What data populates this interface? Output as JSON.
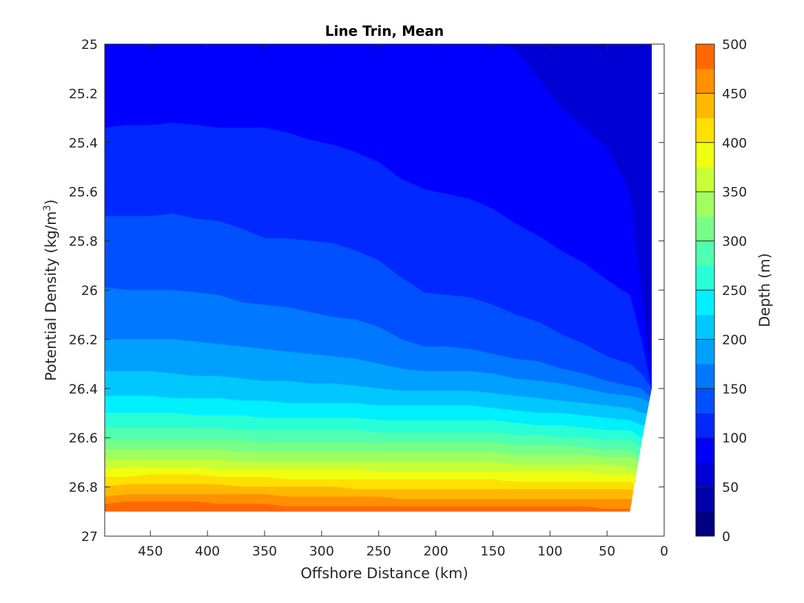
{
  "chart_data": {
    "type": "filled-contour",
    "title": "Line Trin, Mean",
    "xlabel": "Offshore Distance (km)",
    "ylabel": "Potential Density (kg/m3)",
    "ylabel_main": "Potential Density (kg/m",
    "ylabel_sup": "3",
    "ylabel_close": ")",
    "x_direction": "reversed",
    "y_direction": "reversed",
    "xlim": [
      0,
      490
    ],
    "ylim": [
      25,
      27
    ],
    "x_ticks": [
      450,
      400,
      350,
      300,
      250,
      200,
      150,
      100,
      50,
      0
    ],
    "y_ticks": [
      25,
      25.2,
      25.4,
      25.6,
      25.8,
      26,
      26.2,
      26.4,
      26.6,
      26.8,
      27
    ],
    "y_tick_labels": [
      "25",
      "25.2",
      "25.4",
      "25.6",
      "25.8",
      "26",
      "26.2",
      "26.4",
      "26.6",
      "26.8",
      "27"
    ],
    "colormap": "jet",
    "grid": false,
    "colorbar": {
      "label": "Depth (m)",
      "limits": [
        0,
        500
      ],
      "ticks": [
        0,
        50,
        100,
        150,
        200,
        250,
        300,
        350,
        400,
        450,
        500
      ],
      "levels": [
        0,
        25,
        50,
        75,
        100,
        125,
        150,
        175,
        200,
        225,
        250,
        275,
        300,
        325,
        350,
        375,
        400,
        425,
        450,
        475,
        500
      ],
      "colors": [
        "#000080",
        "#0000AA",
        "#0000D4",
        "#0000FF",
        "#0028FF",
        "#0050FF",
        "#0078FF",
        "#00A0FF",
        "#00C8FF",
        "#00F0FF",
        "#28FFD7",
        "#50FFAF",
        "#78FF87",
        "#A0FF5F",
        "#C8FF37",
        "#F0FF0F",
        "#FFE000",
        "#FFB800",
        "#FF9000",
        "#FF6800",
        "#FF4000",
        "#FF1800",
        "#EE0000",
        "#C40000",
        "#A30000"
      ]
    },
    "x": [
      490,
      470,
      450,
      430,
      410,
      390,
      370,
      350,
      330,
      310,
      290,
      270,
      250,
      230,
      210,
      190,
      170,
      150,
      130,
      110,
      90,
      70,
      50,
      30,
      20,
      11
    ],
    "y_top_of_data": 25,
    "density_bottom_at_x": [
      26.9,
      26.9,
      26.9,
      26.9,
      26.9,
      26.9,
      26.9,
      26.9,
      26.9,
      26.9,
      26.9,
      26.9,
      26.9,
      26.9,
      26.9,
      26.9,
      26.9,
      26.9,
      26.9,
      26.9,
      26.9,
      26.9,
      26.9,
      26.9,
      26.62,
      26.4
    ],
    "isolines": [
      {
        "depth": 25,
        "density": [
          24.99,
          24.99,
          24.99,
          24.99,
          24.99,
          24.99,
          24.99,
          24.99,
          24.99,
          24.99,
          24.99,
          24.99,
          24.99,
          24.99,
          24.99,
          24.99,
          24.99,
          24.99,
          24.99,
          24.99,
          24.99,
          24.99,
          24.99,
          24.99,
          24.99,
          24.99
        ]
      },
      {
        "depth": 50,
        "density": [
          24.99,
          24.99,
          24.99,
          24.99,
          24.99,
          24.99,
          24.99,
          24.99,
          24.99,
          24.99,
          24.99,
          24.99,
          24.99,
          24.99,
          24.99,
          24.99,
          24.99,
          24.99,
          24.99,
          24.99,
          24.99,
          24.99,
          24.99,
          24.99,
          24.99,
          24.99
        ]
      },
      {
        "depth": 75,
        "density": [
          24.99,
          24.99,
          24.99,
          24.99,
          24.99,
          24.99,
          24.99,
          24.99,
          24.99,
          24.99,
          24.99,
          24.99,
          24.99,
          24.99,
          24.99,
          24.99,
          24.99,
          24.99,
          25.02,
          25.14,
          25.26,
          25.34,
          25.42,
          25.6,
          26.0,
          26.36
        ]
      },
      {
        "depth": 100,
        "density": [
          25.34,
          25.33,
          25.33,
          25.32,
          25.33,
          25.34,
          25.34,
          25.34,
          25.36,
          25.39,
          25.41,
          25.44,
          25.48,
          25.55,
          25.59,
          25.61,
          25.63,
          25.67,
          25.73,
          25.78,
          25.84,
          25.89,
          25.96,
          26.02,
          26.2,
          26.4
        ]
      },
      {
        "depth": 125,
        "density": [
          25.7,
          25.7,
          25.7,
          25.69,
          25.71,
          25.72,
          25.75,
          25.79,
          25.79,
          25.8,
          25.81,
          25.84,
          25.88,
          25.95,
          26.01,
          26.02,
          26.03,
          26.06,
          26.1,
          26.13,
          26.18,
          26.22,
          26.27,
          26.3,
          26.34,
          26.4
        ]
      },
      {
        "depth": 150,
        "density": [
          25.99,
          26.0,
          26.0,
          26.0,
          26.01,
          26.02,
          26.05,
          26.06,
          26.07,
          26.09,
          26.11,
          26.12,
          26.15,
          26.2,
          26.23,
          26.23,
          26.24,
          26.26,
          26.28,
          26.29,
          26.32,
          26.34,
          26.37,
          26.39,
          26.4,
          26.44
        ]
      },
      {
        "depth": 175,
        "density": [
          26.2,
          26.2,
          26.2,
          26.2,
          26.21,
          26.22,
          26.23,
          26.24,
          26.25,
          26.26,
          26.27,
          26.28,
          26.3,
          26.32,
          26.33,
          26.33,
          26.33,
          26.34,
          26.36,
          26.37,
          26.38,
          26.4,
          26.42,
          26.43,
          26.44,
          26.46
        ]
      },
      {
        "depth": 200,
        "density": [
          26.33,
          26.33,
          26.33,
          26.34,
          26.35,
          26.35,
          26.36,
          26.37,
          26.37,
          26.38,
          26.38,
          26.39,
          26.4,
          26.41,
          26.41,
          26.41,
          26.41,
          26.42,
          26.43,
          26.44,
          26.45,
          26.46,
          26.47,
          26.48,
          26.5,
          26.5
        ]
      },
      {
        "depth": 225,
        "density": [
          26.43,
          26.43,
          26.43,
          26.44,
          26.44,
          26.44,
          26.45,
          26.45,
          26.46,
          26.46,
          26.46,
          26.46,
          26.47,
          26.47,
          26.47,
          26.47,
          26.47,
          26.48,
          26.49,
          26.5,
          26.5,
          26.51,
          26.52,
          26.53,
          26.55,
          26.55
        ]
      },
      {
        "depth": 250,
        "density": [
          26.5,
          26.5,
          26.5,
          26.5,
          26.51,
          26.51,
          26.51,
          26.52,
          26.52,
          26.52,
          26.52,
          26.52,
          26.53,
          26.53,
          26.53,
          26.53,
          26.53,
          26.53,
          26.54,
          26.55,
          26.55,
          26.56,
          26.57,
          26.57,
          26.6,
          26.6
        ]
      },
      {
        "depth": 275,
        "density": [
          26.56,
          26.56,
          26.56,
          26.56,
          26.56,
          26.56,
          26.57,
          26.57,
          26.57,
          26.57,
          26.57,
          26.57,
          26.58,
          26.58,
          26.58,
          26.58,
          26.58,
          26.58,
          26.59,
          26.59,
          26.6,
          26.6,
          26.61,
          26.61,
          26.64,
          26.64
        ]
      },
      {
        "depth": 300,
        "density": [
          26.61,
          26.61,
          26.61,
          26.61,
          26.61,
          26.61,
          26.61,
          26.62,
          26.62,
          26.62,
          26.62,
          26.62,
          26.62,
          26.62,
          26.62,
          26.62,
          26.62,
          26.62,
          26.63,
          26.63,
          26.63,
          26.64,
          26.65,
          26.65,
          26.68,
          26.68
        ]
      },
      {
        "depth": 325,
        "density": [
          26.65,
          26.65,
          26.65,
          26.65,
          26.65,
          26.65,
          26.66,
          26.66,
          26.66,
          26.66,
          26.66,
          26.66,
          26.66,
          26.66,
          26.66,
          26.66,
          26.66,
          26.66,
          26.67,
          26.67,
          26.67,
          26.67,
          26.68,
          26.68,
          26.7,
          26.7
        ]
      },
      {
        "depth": 350,
        "density": [
          26.69,
          26.69,
          26.69,
          26.69,
          26.69,
          26.69,
          26.7,
          26.7,
          26.7,
          26.7,
          26.7,
          26.7,
          26.7,
          26.7,
          26.7,
          26.7,
          26.7,
          26.7,
          26.71,
          26.71,
          26.71,
          26.71,
          26.71,
          26.72,
          26.74,
          26.74
        ]
      },
      {
        "depth": 375,
        "density": [
          26.73,
          26.72,
          26.72,
          26.72,
          26.72,
          26.73,
          26.73,
          26.73,
          26.73,
          26.73,
          26.73,
          26.73,
          26.74,
          26.74,
          26.74,
          26.74,
          26.74,
          26.74,
          26.74,
          26.74,
          26.74,
          26.74,
          26.75,
          26.75,
          26.77,
          26.77
        ]
      },
      {
        "depth": 400,
        "density": [
          26.76,
          26.76,
          26.75,
          26.75,
          26.75,
          26.76,
          26.76,
          26.76,
          26.77,
          26.77,
          26.77,
          26.77,
          26.77,
          26.77,
          26.77,
          26.77,
          26.77,
          26.77,
          26.78,
          26.78,
          26.78,
          26.78,
          26.78,
          26.78,
          26.8,
          26.8
        ]
      },
      {
        "depth": 425,
        "density": [
          26.8,
          26.79,
          26.79,
          26.79,
          26.79,
          26.79,
          26.8,
          26.8,
          26.8,
          26.8,
          26.8,
          26.81,
          26.81,
          26.81,
          26.81,
          26.81,
          26.81,
          26.81,
          26.81,
          26.81,
          26.81,
          26.81,
          26.81,
          26.81,
          26.83,
          26.83
        ]
      },
      {
        "depth": 450,
        "density": [
          26.84,
          26.83,
          26.83,
          26.83,
          26.83,
          26.83,
          26.83,
          26.83,
          26.84,
          26.84,
          26.84,
          26.84,
          26.84,
          26.85,
          26.85,
          26.85,
          26.85,
          26.85,
          26.85,
          26.85,
          26.85,
          26.85,
          26.85,
          26.85,
          26.86,
          26.86
        ]
      },
      {
        "depth": 475,
        "density": [
          26.87,
          26.86,
          26.86,
          26.86,
          26.86,
          26.87,
          26.87,
          26.87,
          26.88,
          26.88,
          26.88,
          26.88,
          26.88,
          26.88,
          26.88,
          26.88,
          26.88,
          26.88,
          26.88,
          26.88,
          26.88,
          26.88,
          26.89,
          26.89,
          26.89,
          26.89
        ]
      }
    ]
  }
}
